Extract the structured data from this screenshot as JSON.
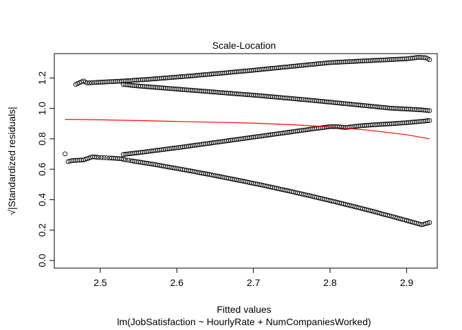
{
  "chart_data": {
    "type": "scatter",
    "title": "Scale-Location",
    "xlabel": "Fitted values",
    "caption": "lm(JobSatisfaction ~ HourlyRate + NumCompaniesWorked)",
    "ylabel": "√|Standardized residuals|",
    "xlim": [
      2.44,
      2.94
    ],
    "ylim": [
      -0.05,
      1.36
    ],
    "x_ticks": [
      "2.5",
      "2.6",
      "2.7",
      "2.8",
      "2.9"
    ],
    "y_ticks": [
      "0.0",
      "0.2",
      "0.4",
      "0.6",
      "0.8",
      "1.0",
      "1.2"
    ],
    "grid": false,
    "point_style": "open-circle",
    "point_color": "#000000",
    "smooth_color": "#ff0000",
    "series": [
      {
        "points": [
          [
            2.468,
            1.158
          ],
          [
            2.478,
            1.18
          ],
          [
            2.483,
            1.167
          ],
          [
            2.492,
            1.17
          ],
          [
            2.5,
            1.172
          ],
          [
            2.51,
            1.175
          ],
          [
            2.52,
            1.177
          ],
          [
            2.53,
            1.18
          ],
          [
            2.54,
            1.183
          ],
          [
            2.55,
            1.187
          ],
          [
            2.56,
            1.19
          ],
          [
            2.57,
            1.194
          ],
          [
            2.58,
            1.198
          ],
          [
            2.59,
            1.202
          ],
          [
            2.6,
            1.206
          ],
          [
            2.61,
            1.21
          ],
          [
            2.62,
            1.214
          ],
          [
            2.63,
            1.219
          ],
          [
            2.64,
            1.223
          ],
          [
            2.65,
            1.228
          ],
          [
            2.66,
            1.232
          ],
          [
            2.67,
            1.237
          ],
          [
            2.68,
            1.242
          ],
          [
            2.69,
            1.246
          ],
          [
            2.7,
            1.251
          ],
          [
            2.71,
            1.256
          ],
          [
            2.72,
            1.261
          ],
          [
            2.73,
            1.266
          ],
          [
            2.74,
            1.271
          ],
          [
            2.75,
            1.276
          ],
          [
            2.76,
            1.281
          ],
          [
            2.77,
            1.286
          ],
          [
            2.78,
            1.291
          ],
          [
            2.79,
            1.296
          ],
          [
            2.8,
            1.301
          ],
          [
            2.82,
            1.306
          ],
          [
            2.84,
            1.311
          ],
          [
            2.86,
            1.316
          ],
          [
            2.88,
            1.321
          ],
          [
            2.9,
            1.326
          ],
          [
            2.91,
            1.332
          ],
          [
            2.915,
            1.336
          ],
          [
            2.925,
            1.333
          ],
          [
            2.93,
            1.32
          ]
        ]
      },
      {
        "points": [
          [
            2.53,
            1.158
          ],
          [
            2.54,
            1.152
          ],
          [
            2.55,
            1.147
          ],
          [
            2.56,
            1.143
          ],
          [
            2.57,
            1.139
          ],
          [
            2.58,
            1.135
          ],
          [
            2.59,
            1.131
          ],
          [
            2.6,
            1.127
          ],
          [
            2.61,
            1.123
          ],
          [
            2.62,
            1.119
          ],
          [
            2.63,
            1.115
          ],
          [
            2.64,
            1.111
          ],
          [
            2.65,
            1.107
          ],
          [
            2.66,
            1.103
          ],
          [
            2.67,
            1.099
          ],
          [
            2.68,
            1.095
          ],
          [
            2.69,
            1.091
          ],
          [
            2.7,
            1.087
          ],
          [
            2.71,
            1.083
          ],
          [
            2.72,
            1.078
          ],
          [
            2.73,
            1.074
          ],
          [
            2.74,
            1.069
          ],
          [
            2.75,
            1.065
          ],
          [
            2.76,
            1.06
          ],
          [
            2.77,
            1.056
          ],
          [
            2.78,
            1.051
          ],
          [
            2.79,
            1.046
          ],
          [
            2.8,
            1.041
          ],
          [
            2.81,
            1.036
          ],
          [
            2.82,
            1.031
          ],
          [
            2.83,
            1.026
          ],
          [
            2.84,
            1.021
          ],
          [
            2.85,
            1.016
          ],
          [
            2.86,
            1.011
          ],
          [
            2.87,
            1.006
          ],
          [
            2.88,
            1.001
          ],
          [
            2.9,
            0.996
          ],
          [
            2.92,
            0.99
          ],
          [
            2.93,
            0.985
          ]
        ]
      },
      {
        "points": [
          [
            2.53,
            0.697
          ],
          [
            2.54,
            0.703
          ],
          [
            2.55,
            0.709
          ],
          [
            2.56,
            0.715
          ],
          [
            2.57,
            0.722
          ],
          [
            2.58,
            0.728
          ],
          [
            2.59,
            0.735
          ],
          [
            2.6,
            0.741
          ],
          [
            2.61,
            0.748
          ],
          [
            2.62,
            0.755
          ],
          [
            2.63,
            0.762
          ],
          [
            2.64,
            0.769
          ],
          [
            2.65,
            0.776
          ],
          [
            2.66,
            0.783
          ],
          [
            2.67,
            0.79
          ],
          [
            2.68,
            0.797
          ],
          [
            2.69,
            0.804
          ],
          [
            2.7,
            0.811
          ],
          [
            2.71,
            0.818
          ],
          [
            2.72,
            0.825
          ],
          [
            2.73,
            0.832
          ],
          [
            2.74,
            0.839
          ],
          [
            2.75,
            0.846
          ],
          [
            2.76,
            0.853
          ],
          [
            2.77,
            0.86
          ],
          [
            2.78,
            0.867
          ],
          [
            2.79,
            0.873
          ],
          [
            2.8,
            0.88
          ],
          [
            2.81,
            0.88
          ],
          [
            2.82,
            0.874
          ],
          [
            2.83,
            0.88
          ],
          [
            2.84,
            0.886
          ],
          [
            2.86,
            0.893
          ],
          [
            2.88,
            0.899
          ],
          [
            2.9,
            0.906
          ],
          [
            2.93,
            0.92
          ]
        ]
      },
      {
        "points": [
          [
            2.454,
            0.701
          ],
          [
            2.458,
            0.65
          ],
          [
            2.463,
            0.657
          ],
          [
            2.478,
            0.661
          ],
          [
            2.49,
            0.682
          ],
          [
            2.498,
            0.678
          ],
          [
            2.505,
            0.676
          ],
          [
            2.512,
            0.674
          ],
          [
            2.52,
            0.672
          ],
          [
            2.528,
            0.668
          ],
          [
            2.533,
            0.662
          ],
          [
            2.54,
            0.656
          ],
          [
            2.55,
            0.648
          ],
          [
            2.56,
            0.64
          ],
          [
            2.57,
            0.632
          ],
          [
            2.58,
            0.623
          ],
          [
            2.59,
            0.614
          ],
          [
            2.6,
            0.605
          ],
          [
            2.61,
            0.596
          ],
          [
            2.62,
            0.587
          ],
          [
            2.63,
            0.577
          ],
          [
            2.64,
            0.568
          ],
          [
            2.65,
            0.558
          ],
          [
            2.66,
            0.548
          ],
          [
            2.67,
            0.538
          ],
          [
            2.68,
            0.528
          ],
          [
            2.69,
            0.518
          ],
          [
            2.7,
            0.507
          ],
          [
            2.71,
            0.497
          ],
          [
            2.72,
            0.486
          ],
          [
            2.73,
            0.475
          ],
          [
            2.74,
            0.464
          ],
          [
            2.75,
            0.453
          ],
          [
            2.76,
            0.441
          ],
          [
            2.77,
            0.43
          ],
          [
            2.78,
            0.418
          ],
          [
            2.79,
            0.406
          ],
          [
            2.8,
            0.394
          ],
          [
            2.81,
            0.382
          ],
          [
            2.82,
            0.369
          ],
          [
            2.83,
            0.357
          ],
          [
            2.84,
            0.344
          ],
          [
            2.85,
            0.331
          ],
          [
            2.86,
            0.318
          ],
          [
            2.87,
            0.304
          ],
          [
            2.88,
            0.291
          ],
          [
            2.89,
            0.277
          ],
          [
            2.9,
            0.263
          ],
          [
            2.91,
            0.249
          ],
          [
            2.92,
            0.235
          ],
          [
            2.93,
            0.25
          ]
        ]
      }
    ],
    "smooth_line": [
      [
        2.454,
        0.928
      ],
      [
        2.5,
        0.925
      ],
      [
        2.55,
        0.92
      ],
      [
        2.6,
        0.914
      ],
      [
        2.65,
        0.909
      ],
      [
        2.7,
        0.903
      ],
      [
        2.75,
        0.893
      ],
      [
        2.8,
        0.878
      ],
      [
        2.85,
        0.857
      ],
      [
        2.9,
        0.827
      ],
      [
        2.93,
        0.8
      ]
    ]
  }
}
